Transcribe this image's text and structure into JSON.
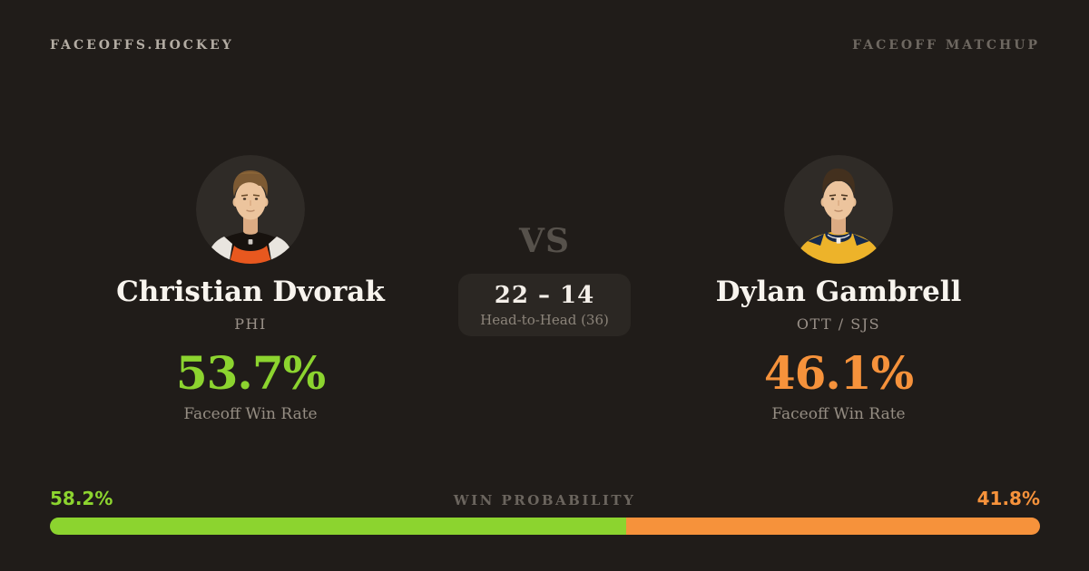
{
  "header": {
    "brand": "FACEOFFS.HOCKEY",
    "page_label": "FACEOFF MATCHUP"
  },
  "players": {
    "left": {
      "name": "Christian Dvorak",
      "team": "PHI",
      "faceoff_win_rate": "53.7%",
      "stat_label": "Faceoff Win Rate",
      "accent_color": "#8cd42f"
    },
    "right": {
      "name": "Dylan Gambrell",
      "team": "OTT / SJS",
      "faceoff_win_rate": "46.1%",
      "stat_label": "Faceoff Win Rate",
      "accent_color": "#f6923b"
    }
  },
  "matchup": {
    "vs_label": "VS",
    "head_to_head_score": "22 – 14",
    "head_to_head_label": "Head-to-Head (36)"
  },
  "win_probability": {
    "label": "WIN PROBABILITY",
    "left": {
      "pct_label": "58.2%",
      "value": 58.2,
      "color": "#8cd42f"
    },
    "right": {
      "pct_label": "41.8%",
      "value": 41.8,
      "color": "#f6923b"
    }
  }
}
